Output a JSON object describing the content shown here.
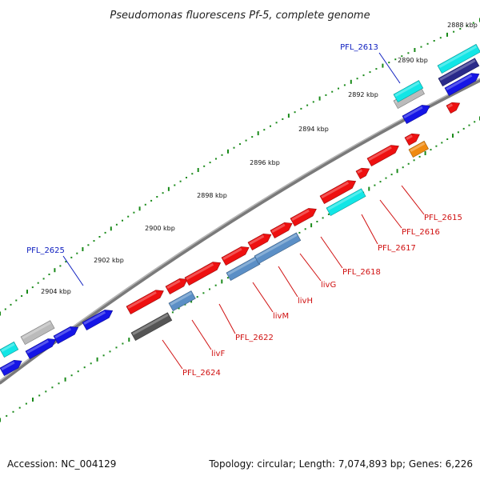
{
  "title": "Pseudomonas fluorescens Pf-5, complete genome",
  "footer": {
    "accession": "Accession: NC_004129",
    "summary": "Topology: circular; Length: 7,074,893 bp; Genes: 6,226"
  },
  "colors": {
    "backbone": "#7a7a7a",
    "tick": "#1a8a1a",
    "red": "#ee1010",
    "blue": "#1515e6",
    "cyan": "#12e6e6",
    "steelblue": "#5b8fc6",
    "gray": "#555555",
    "silver": "#bbbbbb",
    "orange": "#f08a10",
    "darkblue": "#2a2a8a"
  },
  "scale": {
    "unit": "kbp",
    "labels": [
      "2888 kbp",
      "2890 kbp",
      "2892 kbp",
      "2894 kbp",
      "2896 kbp",
      "2898 kbp",
      "2900 kbp",
      "2902 kbp",
      "2904 kbp"
    ]
  },
  "genes": [
    {
      "name": "PFL_2613",
      "color": "blue"
    },
    {
      "name": "PFL_2615",
      "color": "red"
    },
    {
      "name": "PFL_2616",
      "color": "red"
    },
    {
      "name": "PFL_2617",
      "color": "red"
    },
    {
      "name": "PFL_2618",
      "color": "red"
    },
    {
      "name": "livG",
      "color": "red"
    },
    {
      "name": "livH",
      "color": "red"
    },
    {
      "name": "livM",
      "color": "red"
    },
    {
      "name": "PFL_2622",
      "color": "red"
    },
    {
      "name": "livF",
      "color": "red"
    },
    {
      "name": "PFL_2624",
      "color": "red"
    },
    {
      "name": "PFL_2625",
      "color": "blue"
    }
  ]
}
